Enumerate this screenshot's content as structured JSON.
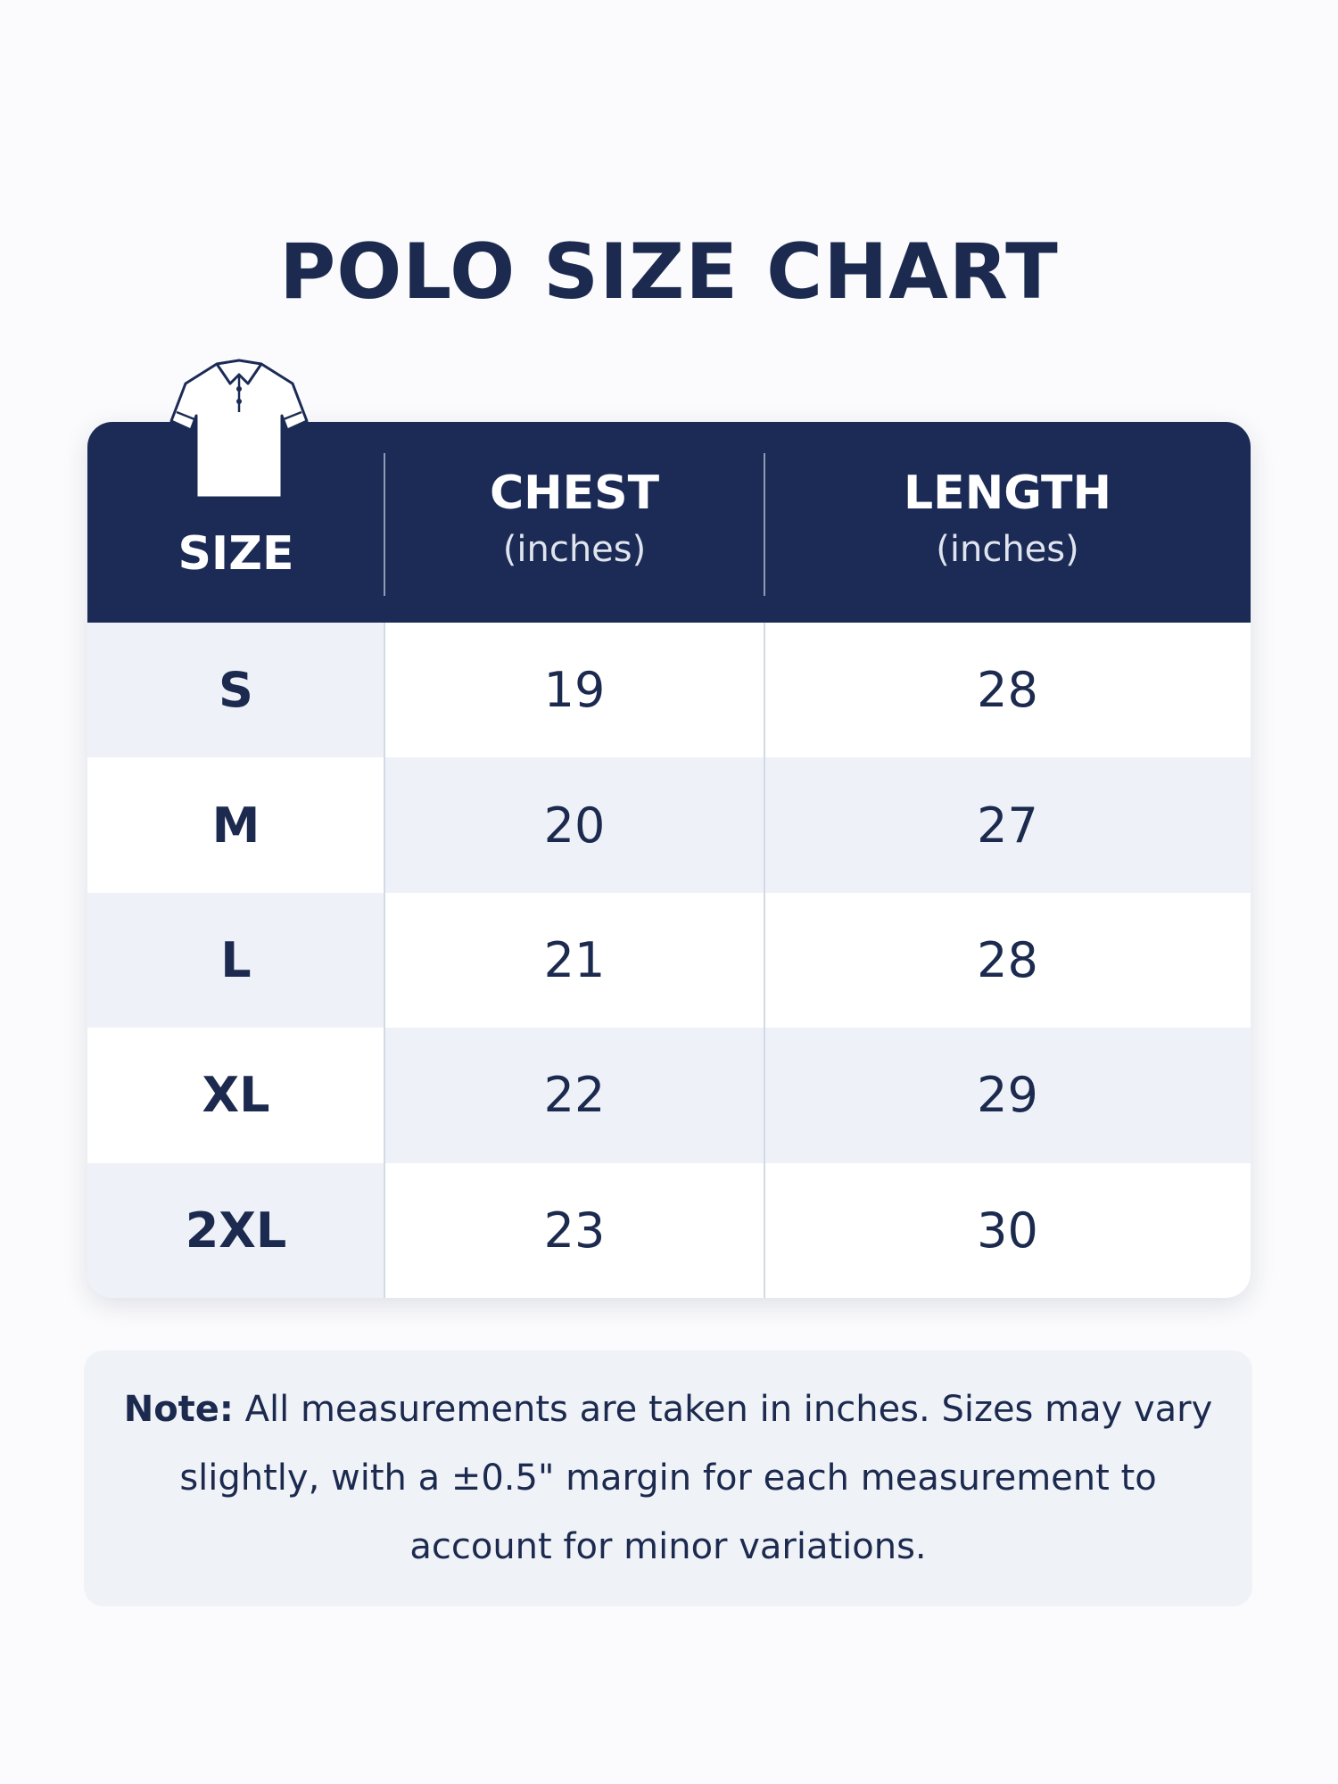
{
  "header": {
    "title": "POLO SIZE CHART"
  },
  "table": {
    "columns": [
      {
        "label": "SIZE"
      },
      {
        "label": "CHEST",
        "unit": "(inches)"
      },
      {
        "label": "LENGTH",
        "unit": "(inches)"
      }
    ],
    "rows": [
      [
        "S",
        19,
        28
      ],
      [
        "M",
        20,
        27
      ],
      [
        "L",
        21,
        28
      ],
      [
        "XL",
        22,
        29
      ],
      [
        "2XL",
        23,
        30
      ]
    ]
  },
  "note": {
    "label": "Note:",
    "text": "All measurements are taken in inches. Sizes may vary slightly, with a ±0.5\" margin for each measurement to account for minor variations."
  }
}
